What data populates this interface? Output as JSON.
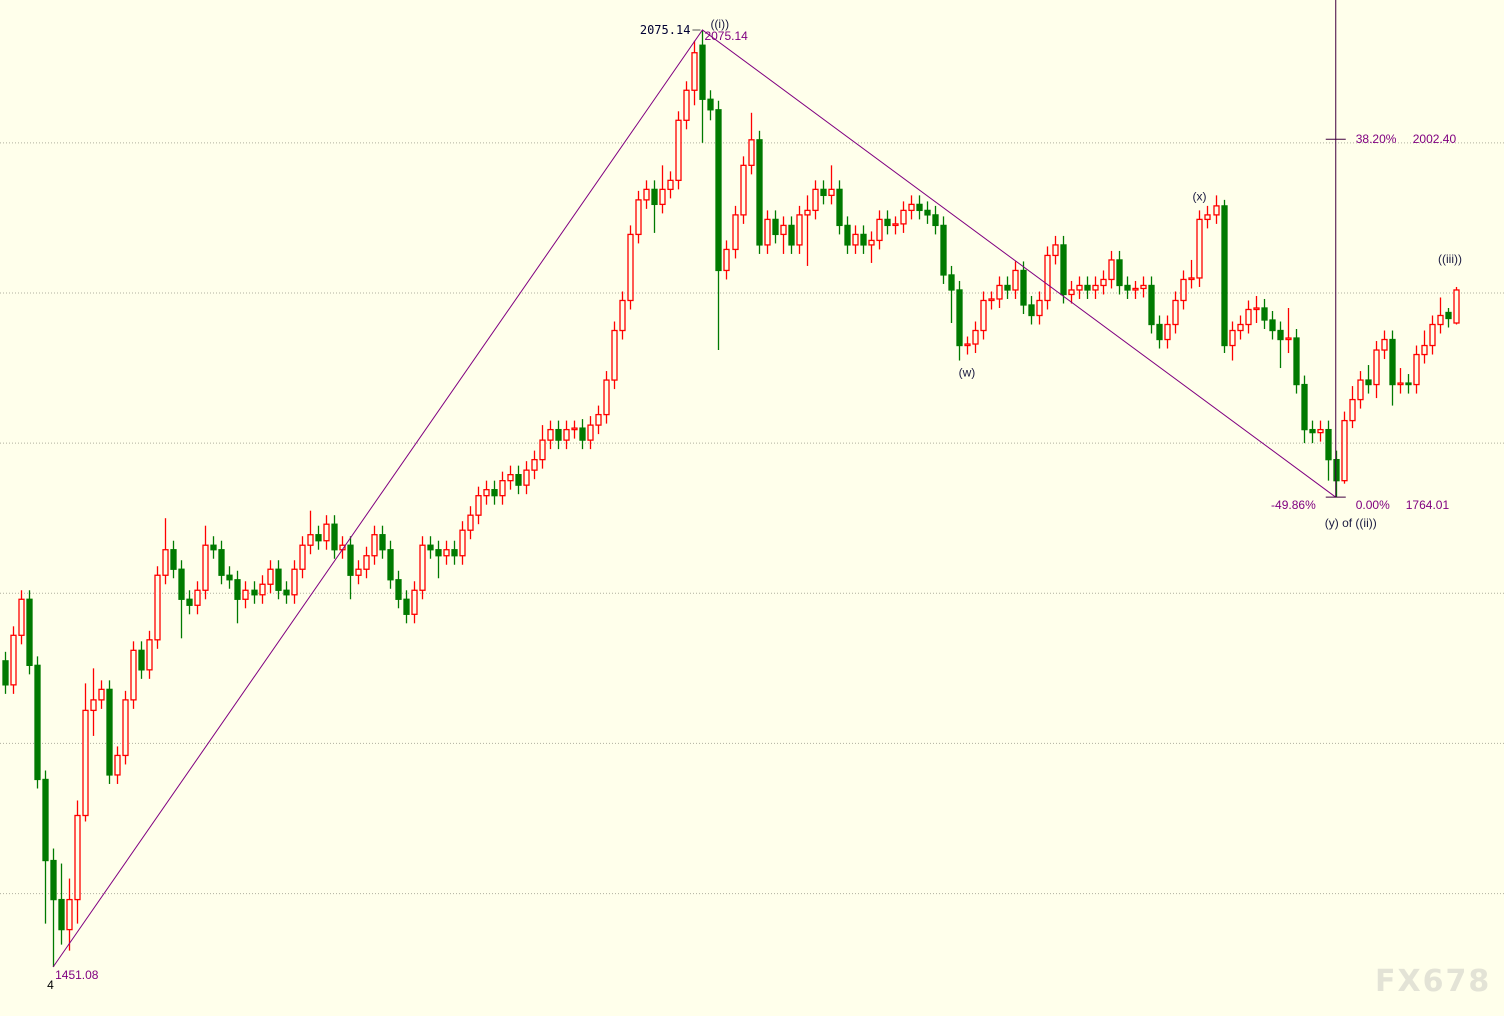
{
  "chart_data": {
    "type": "candlestick",
    "title": "",
    "ylim": [
      1440,
      2095
    ],
    "grid": true,
    "gridlines": [
      1500,
      1600,
      1700,
      1800,
      1900,
      2000
    ],
    "colors": {
      "up": "#ff0000",
      "down": "#007a00",
      "background": "#ffffeb",
      "overlay": "#800080",
      "grid": "#b0b0a0"
    },
    "candles": [
      [
        1655,
        1661,
        1633,
        1639
      ],
      [
        1639,
        1678,
        1633,
        1672
      ],
      [
        1672,
        1702,
        1666,
        1696
      ],
      [
        1696,
        1702,
        1646,
        1652
      ],
      [
        1652,
        1658,
        1570,
        1576
      ],
      [
        1576,
        1582,
        1480,
        1522
      ],
      [
        1522,
        1530,
        1451.08,
        1496
      ],
      [
        1496,
        1520,
        1466,
        1476
      ],
      [
        1476,
        1510,
        1462,
        1496
      ],
      [
        1496,
        1562,
        1480,
        1552
      ],
      [
        1552,
        1640,
        1548,
        1622
      ],
      [
        1622,
        1650,
        1605,
        1629
      ],
      [
        1629,
        1642,
        1623,
        1636
      ],
      [
        1636,
        1642,
        1573,
        1579
      ],
      [
        1579,
        1598,
        1573,
        1592
      ],
      [
        1592,
        1635,
        1586,
        1629
      ],
      [
        1629,
        1668,
        1623,
        1662
      ],
      [
        1662,
        1668,
        1643,
        1649
      ],
      [
        1649,
        1675,
        1643,
        1669
      ],
      [
        1669,
        1718,
        1663,
        1712
      ],
      [
        1712,
        1750,
        1706,
        1729
      ],
      [
        1729,
        1735,
        1710,
        1716
      ],
      [
        1716,
        1722,
        1670,
        1696
      ],
      [
        1696,
        1702,
        1686,
        1692
      ],
      [
        1692,
        1708,
        1686,
        1702
      ],
      [
        1702,
        1745,
        1696,
        1732
      ],
      [
        1732,
        1738,
        1723,
        1729
      ],
      [
        1729,
        1735,
        1706,
        1712
      ],
      [
        1712,
        1718,
        1703,
        1709
      ],
      [
        1709,
        1715,
        1680,
        1696
      ],
      [
        1696,
        1708,
        1690,
        1702
      ],
      [
        1702,
        1708,
        1693,
        1699
      ],
      [
        1699,
        1712,
        1693,
        1706
      ],
      [
        1706,
        1722,
        1700,
        1716
      ],
      [
        1716,
        1722,
        1696,
        1702
      ],
      [
        1702,
        1708,
        1693,
        1699
      ],
      [
        1699,
        1722,
        1693,
        1716
      ],
      [
        1716,
        1738,
        1710,
        1732
      ],
      [
        1732,
        1755,
        1726,
        1739
      ],
      [
        1739,
        1745,
        1729,
        1735
      ],
      [
        1735,
        1752,
        1729,
        1746
      ],
      [
        1746,
        1752,
        1723,
        1729
      ],
      [
        1729,
        1738,
        1723,
        1732
      ],
      [
        1732,
        1738,
        1696,
        1712
      ],
      [
        1712,
        1722,
        1706,
        1716
      ],
      [
        1716,
        1731,
        1710,
        1725
      ],
      [
        1725,
        1745,
        1719,
        1739
      ],
      [
        1739,
        1745,
        1723,
        1729
      ],
      [
        1729,
        1735,
        1703,
        1709
      ],
      [
        1709,
        1715,
        1690,
        1696
      ],
      [
        1696,
        1702,
        1680,
        1686
      ],
      [
        1686,
        1708,
        1680,
        1702
      ],
      [
        1702,
        1738,
        1696,
        1732
      ],
      [
        1732,
        1738,
        1723,
        1729
      ],
      [
        1729,
        1735,
        1710,
        1725
      ],
      [
        1725,
        1735,
        1719,
        1729
      ],
      [
        1729,
        1735,
        1719,
        1725
      ],
      [
        1725,
        1748,
        1719,
        1742
      ],
      [
        1742,
        1758,
        1736,
        1752
      ],
      [
        1752,
        1771,
        1746,
        1765
      ],
      [
        1765,
        1775,
        1759,
        1769
      ],
      [
        1769,
        1775,
        1759,
        1765
      ],
      [
        1765,
        1781,
        1759,
        1775
      ],
      [
        1775,
        1785,
        1769,
        1779
      ],
      [
        1779,
        1785,
        1766,
        1772
      ],
      [
        1772,
        1788,
        1766,
        1782
      ],
      [
        1782,
        1795,
        1776,
        1789
      ],
      [
        1789,
        1812,
        1783,
        1802
      ],
      [
        1802,
        1815,
        1796,
        1809
      ],
      [
        1809,
        1815,
        1796,
        1802
      ],
      [
        1802,
        1815,
        1796,
        1809
      ],
      [
        1809,
        1815,
        1803,
        1810
      ],
      [
        1810,
        1816,
        1796,
        1802
      ],
      [
        1802,
        1818,
        1796,
        1812
      ],
      [
        1812,
        1825,
        1806,
        1819
      ],
      [
        1819,
        1848,
        1813,
        1842
      ],
      [
        1842,
        1881,
        1836,
        1875
      ],
      [
        1875,
        1901,
        1869,
        1895
      ],
      [
        1895,
        1945,
        1889,
        1939
      ],
      [
        1939,
        1968,
        1933,
        1962
      ],
      [
        1962,
        1975,
        1956,
        1969
      ],
      [
        1969,
        1975,
        1940,
        1959
      ],
      [
        1959,
        1985,
        1953,
        1969
      ],
      [
        1969,
        1981,
        1963,
        1975
      ],
      [
        1975,
        2021,
        1969,
        2015
      ],
      [
        2015,
        2041,
        2009,
        2035
      ],
      [
        2035,
        2068,
        2025,
        2060
      ],
      [
        2065,
        2075.14,
        2000,
        2029
      ],
      [
        2029,
        2035,
        2015,
        2022
      ],
      [
        2022,
        2028,
        1862,
        1915
      ],
      [
        1915,
        1935,
        1909,
        1929
      ],
      [
        1929,
        1958,
        1923,
        1952
      ],
      [
        1952,
        1991,
        1946,
        1985
      ],
      [
        1985,
        2020,
        1979,
        2002
      ],
      [
        2002,
        2008,
        1926,
        1932
      ],
      [
        1932,
        1955,
        1926,
        1949
      ],
      [
        1949,
        1955,
        1933,
        1939
      ],
      [
        1939,
        1951,
        1926,
        1945
      ],
      [
        1945,
        1951,
        1926,
        1932
      ],
      [
        1932,
        1958,
        1926,
        1952
      ],
      [
        1952,
        1965,
        1918,
        1955
      ],
      [
        1955,
        1975,
        1949,
        1969
      ],
      [
        1969,
        1975,
        1959,
        1965
      ],
      [
        1965,
        1985,
        1959,
        1969
      ],
      [
        1969,
        1975,
        1939,
        1945
      ],
      [
        1945,
        1951,
        1926,
        1932
      ],
      [
        1932,
        1945,
        1926,
        1939
      ],
      [
        1939,
        1945,
        1926,
        1932
      ],
      [
        1932,
        1941,
        1920,
        1935
      ],
      [
        1935,
        1955,
        1929,
        1949
      ],
      [
        1949,
        1955,
        1939,
        1945
      ],
      [
        1945,
        1951,
        1939,
        1946
      ],
      [
        1946,
        1961,
        1940,
        1955
      ],
      [
        1955,
        1965,
        1949,
        1959
      ],
      [
        1959,
        1965,
        1949,
        1955
      ],
      [
        1955,
        1961,
        1946,
        1952
      ],
      [
        1952,
        1958,
        1939,
        1945
      ],
      [
        1945,
        1951,
        1906,
        1912
      ],
      [
        1912,
        1918,
        1880,
        1902
      ],
      [
        1902,
        1908,
        1855,
        1865
      ],
      [
        1865,
        1871,
        1859,
        1866
      ],
      [
        1866,
        1881,
        1860,
        1875
      ],
      [
        1875,
        1901,
        1869,
        1895
      ],
      [
        1895,
        1901,
        1889,
        1896
      ],
      [
        1896,
        1911,
        1890,
        1905
      ],
      [
        1905,
        1911,
        1896,
        1902
      ],
      [
        1902,
        1921,
        1896,
        1915
      ],
      [
        1915,
        1921,
        1886,
        1892
      ],
      [
        1892,
        1898,
        1879,
        1885
      ],
      [
        1885,
        1901,
        1879,
        1895
      ],
      [
        1895,
        1931,
        1889,
        1925
      ],
      [
        1925,
        1938,
        1919,
        1932
      ],
      [
        1932,
        1938,
        1893,
        1899
      ],
      [
        1899,
        1908,
        1893,
        1902
      ],
      [
        1902,
        1911,
        1896,
        1905
      ],
      [
        1905,
        1911,
        1896,
        1902
      ],
      [
        1902,
        1911,
        1896,
        1905
      ],
      [
        1905,
        1915,
        1899,
        1909
      ],
      [
        1909,
        1928,
        1903,
        1922
      ],
      [
        1922,
        1928,
        1899,
        1905
      ],
      [
        1905,
        1911,
        1896,
        1902
      ],
      [
        1902,
        1908,
        1896,
        1903
      ],
      [
        1903,
        1911,
        1897,
        1905
      ],
      [
        1905,
        1911,
        1873,
        1879
      ],
      [
        1879,
        1885,
        1863,
        1869
      ],
      [
        1869,
        1885,
        1863,
        1879
      ],
      [
        1879,
        1901,
        1873,
        1895
      ],
      [
        1895,
        1915,
        1889,
        1909
      ],
      [
        1909,
        1922,
        1903,
        1910
      ],
      [
        1910,
        1955,
        1904,
        1949
      ],
      [
        1949,
        1958,
        1943,
        1952
      ],
      [
        1952,
        1965,
        1946,
        1958
      ],
      [
        1958,
        1962,
        1860,
        1865
      ],
      [
        1865,
        1881,
        1855,
        1875
      ],
      [
        1875,
        1885,
        1869,
        1879
      ],
      [
        1879,
        1895,
        1873,
        1889
      ],
      [
        1889,
        1898,
        1880,
        1890
      ],
      [
        1890,
        1896,
        1876,
        1882
      ],
      [
        1882,
        1888,
        1869,
        1875
      ],
      [
        1875,
        1881,
        1850,
        1869
      ],
      [
        1869,
        1890,
        1860,
        1870
      ],
      [
        1870,
        1876,
        1833,
        1839
      ],
      [
        1839,
        1845,
        1800,
        1809
      ],
      [
        1809,
        1815,
        1800,
        1807
      ],
      [
        1807,
        1815,
        1801,
        1809
      ],
      [
        1809,
        1815,
        1775,
        1789
      ],
      [
        1789,
        1795,
        1764.01,
        1775
      ],
      [
        1775,
        1821,
        1773,
        1815
      ],
      [
        1815,
        1838,
        1810,
        1829
      ],
      [
        1829,
        1848,
        1823,
        1842
      ],
      [
        1842,
        1852,
        1833,
        1839
      ],
      [
        1839,
        1868,
        1830,
        1862
      ],
      [
        1862,
        1875,
        1856,
        1869
      ],
      [
        1869,
        1875,
        1825,
        1839
      ],
      [
        1839,
        1850,
        1833,
        1840
      ],
      [
        1840,
        1846,
        1833,
        1839
      ],
      [
        1839,
        1865,
        1833,
        1859
      ],
      [
        1859,
        1875,
        1853,
        1865
      ],
      [
        1865,
        1885,
        1859,
        1879
      ],
      [
        1879,
        1897,
        1873,
        1885
      ],
      [
        1887,
        1890,
        1877,
        1883
      ],
      [
        1880,
        1904,
        1879,
        1902
      ]
    ],
    "wave_lines": [
      {
        "candle": 6,
        "price": 1451.08
      },
      {
        "candle": 87,
        "price": 2075.14
      },
      {
        "candle": 166,
        "price": 1764.01
      }
    ],
    "fibonacci": {
      "candle": 166,
      "levels": [
        {
          "price": 2002.4,
          "percent": "38.20%",
          "value": "2002.40"
        },
        {
          "price": 1764.01,
          "percent": "0.00%",
          "value": "1764.01"
        }
      ],
      "extra_label": "-49.86%"
    },
    "annotations": {
      "low_value": "1451.08",
      "low_wave": "4",
      "peak_left": "2075.14",
      "peak_right": "2075.14",
      "peak_wave": "((i))",
      "w_label": "(w)",
      "x_label": "(x)",
      "y_label": "(y) of ((ii))",
      "iii_label": "((iii))"
    },
    "watermark": "FX678"
  }
}
